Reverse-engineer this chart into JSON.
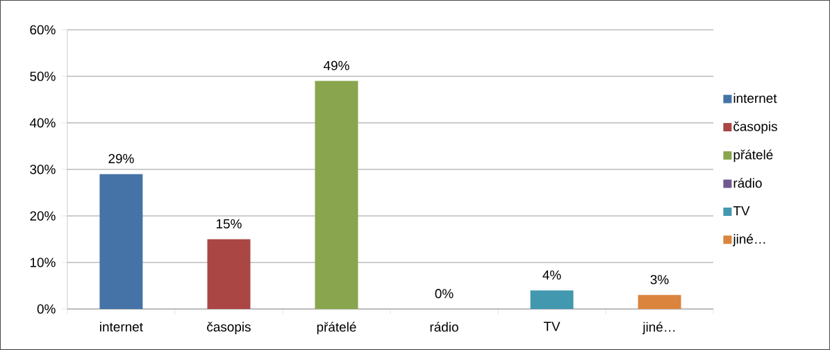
{
  "chart_data": {
    "type": "bar",
    "categories": [
      "internet",
      "časopis",
      "přátelé",
      "rádio",
      "TV",
      "jiné…"
    ],
    "series": [
      {
        "name": "internet",
        "color": "#4573a7",
        "values": [
          29,
          null,
          null,
          null,
          null,
          null
        ],
        "value_labels": [
          "29%",
          null,
          null,
          null,
          null,
          null
        ]
      },
      {
        "name": "časopis",
        "color": "#aa4644",
        "values": [
          null,
          15,
          null,
          null,
          null,
          null
        ],
        "value_labels": [
          null,
          "15%",
          null,
          null,
          null,
          null
        ]
      },
      {
        "name": "přátelé",
        "color": "#89a54e",
        "values": [
          null,
          null,
          49,
          null,
          null,
          null
        ],
        "value_labels": [
          null,
          null,
          "49%",
          null,
          null,
          null
        ]
      },
      {
        "name": "rádio",
        "color": "#71588f",
        "values": [
          null,
          null,
          null,
          0,
          null,
          null
        ],
        "value_labels": [
          null,
          null,
          null,
          "0%",
          null,
          null
        ]
      },
      {
        "name": "TV",
        "color": "#4298af",
        "values": [
          null,
          null,
          null,
          null,
          4,
          null
        ],
        "value_labels": [
          null,
          null,
          null,
          null,
          "4%",
          null
        ]
      },
      {
        "name": "jiné…",
        "color": "#db843d",
        "values": [
          null,
          null,
          null,
          null,
          null,
          3
        ],
        "value_labels": [
          null,
          null,
          null,
          null,
          null,
          "3%"
        ]
      }
    ],
    "ylim": [
      0,
      60
    ],
    "yticks": [
      {
        "value": 0,
        "label": "0%"
      },
      {
        "value": 10,
        "label": "10%"
      },
      {
        "value": 20,
        "label": "20%"
      },
      {
        "value": 30,
        "label": "30%"
      },
      {
        "value": 40,
        "label": "40%"
      },
      {
        "value": 50,
        "label": "50%"
      },
      {
        "value": 60,
        "label": "60%"
      }
    ],
    "grid": "y",
    "legend": "right"
  }
}
